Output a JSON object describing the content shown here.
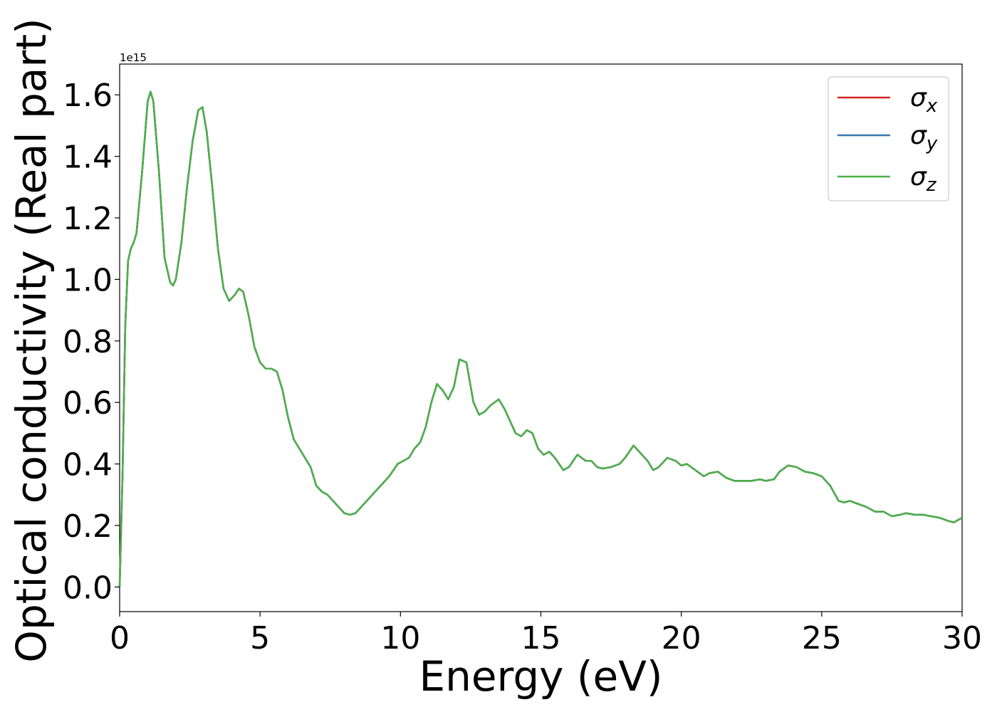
{
  "chart_data": {
    "type": "line",
    "title": "",
    "xlabel": "Energy (eV)",
    "ylabel": "Optical conductivity (Real part)",
    "y_offset_text": "1e15",
    "xlim": [
      0,
      30
    ],
    "ylim": [
      -0.08,
      1.7
    ],
    "y_scale_factor": 1000000000000000.0,
    "xticks": [
      0,
      5,
      10,
      15,
      20,
      25,
      30
    ],
    "xtick_labels": [
      "0",
      "5",
      "10",
      "15",
      "20",
      "25",
      "30"
    ],
    "yticks": [
      0.0,
      0.2,
      0.4,
      0.6,
      0.8,
      1.0,
      1.2,
      1.4,
      1.6
    ],
    "ytick_labels": [
      "0.0",
      "0.2",
      "0.4",
      "0.6",
      "0.8",
      "1.0",
      "1.2",
      "1.4",
      "1.6"
    ],
    "grid": false,
    "legend_position": "top-right",
    "x": [
      0,
      0.1,
      0.2,
      0.3,
      0.4,
      0.5,
      0.6,
      0.8,
      1.0,
      1.1,
      1.2,
      1.4,
      1.6,
      1.8,
      1.9,
      2.0,
      2.2,
      2.4,
      2.6,
      2.8,
      2.95,
      3.1,
      3.3,
      3.5,
      3.7,
      3.9,
      4.1,
      4.25,
      4.4,
      4.6,
      4.8,
      5.0,
      5.2,
      5.4,
      5.6,
      5.8,
      6.0,
      6.2,
      6.4,
      6.6,
      6.8,
      7.0,
      7.2,
      7.4,
      7.6,
      7.8,
      8.0,
      8.2,
      8.4,
      8.55,
      8.7,
      9.0,
      9.3,
      9.6,
      9.9,
      10.1,
      10.3,
      10.5,
      10.7,
      10.9,
      11.1,
      11.3,
      11.5,
      11.7,
      11.9,
      12.1,
      12.35,
      12.6,
      12.8,
      13.0,
      13.2,
      13.5,
      13.7,
      13.9,
      14.1,
      14.3,
      14.5,
      14.7,
      14.9,
      15.1,
      15.3,
      15.5,
      15.8,
      16.0,
      16.3,
      16.6,
      16.8,
      17.0,
      17.2,
      17.5,
      17.8,
      18.0,
      18.3,
      18.6,
      18.8,
      19.0,
      19.2,
      19.5,
      19.8,
      20.0,
      20.2,
      20.5,
      20.8,
      21.0,
      21.3,
      21.6,
      21.9,
      22.2,
      22.5,
      22.8,
      23.0,
      23.3,
      23.5,
      23.8,
      24.1,
      24.4,
      24.7,
      25.0,
      25.3,
      25.6,
      25.8,
      26.0,
      26.3,
      26.6,
      26.9,
      27.2,
      27.5,
      27.8,
      28.0,
      28.3,
      28.6,
      28.9,
      29.2,
      29.5,
      29.7,
      30.0
    ],
    "series": [
      {
        "name": "σx",
        "color": "#d62728",
        "values": [
          0.0,
          0.35,
          0.85,
          1.06,
          1.1,
          1.12,
          1.15,
          1.35,
          1.58,
          1.61,
          1.58,
          1.35,
          1.07,
          0.99,
          0.98,
          1.0,
          1.12,
          1.3,
          1.45,
          1.55,
          1.56,
          1.48,
          1.3,
          1.1,
          0.97,
          0.93,
          0.95,
          0.97,
          0.96,
          0.88,
          0.78,
          0.73,
          0.71,
          0.71,
          0.7,
          0.64,
          0.55,
          0.48,
          0.45,
          0.42,
          0.39,
          0.33,
          0.31,
          0.3,
          0.28,
          0.26,
          0.24,
          0.235,
          0.24,
          0.255,
          0.27,
          0.3,
          0.33,
          0.36,
          0.4,
          0.41,
          0.42,
          0.45,
          0.47,
          0.52,
          0.6,
          0.66,
          0.64,
          0.61,
          0.65,
          0.74,
          0.73,
          0.6,
          0.56,
          0.57,
          0.59,
          0.61,
          0.58,
          0.54,
          0.5,
          0.49,
          0.51,
          0.5,
          0.45,
          0.43,
          0.44,
          0.42,
          0.38,
          0.39,
          0.43,
          0.41,
          0.41,
          0.39,
          0.385,
          0.39,
          0.4,
          0.42,
          0.46,
          0.43,
          0.41,
          0.38,
          0.39,
          0.42,
          0.41,
          0.395,
          0.4,
          0.38,
          0.36,
          0.37,
          0.375,
          0.355,
          0.345,
          0.345,
          0.345,
          0.35,
          0.345,
          0.35,
          0.375,
          0.395,
          0.39,
          0.375,
          0.37,
          0.36,
          0.33,
          0.28,
          0.275,
          0.28,
          0.27,
          0.26,
          0.245,
          0.245,
          0.23,
          0.235,
          0.24,
          0.235,
          0.235,
          0.23,
          0.225,
          0.215,
          0.21,
          0.225
        ]
      },
      {
        "name": "σy",
        "color": "#3a78b0",
        "values": [
          0.0,
          0.35,
          0.85,
          1.06,
          1.1,
          1.12,
          1.15,
          1.35,
          1.58,
          1.61,
          1.58,
          1.35,
          1.07,
          0.99,
          0.98,
          1.0,
          1.12,
          1.3,
          1.45,
          1.55,
          1.56,
          1.48,
          1.3,
          1.1,
          0.97,
          0.93,
          0.95,
          0.97,
          0.96,
          0.88,
          0.78,
          0.73,
          0.71,
          0.71,
          0.7,
          0.64,
          0.55,
          0.48,
          0.45,
          0.42,
          0.39,
          0.33,
          0.31,
          0.3,
          0.28,
          0.26,
          0.24,
          0.235,
          0.24,
          0.255,
          0.27,
          0.3,
          0.33,
          0.36,
          0.4,
          0.41,
          0.42,
          0.45,
          0.47,
          0.52,
          0.6,
          0.66,
          0.64,
          0.61,
          0.65,
          0.74,
          0.73,
          0.6,
          0.56,
          0.57,
          0.59,
          0.61,
          0.58,
          0.54,
          0.5,
          0.49,
          0.51,
          0.5,
          0.45,
          0.43,
          0.44,
          0.42,
          0.38,
          0.39,
          0.43,
          0.41,
          0.41,
          0.39,
          0.385,
          0.39,
          0.4,
          0.42,
          0.46,
          0.43,
          0.41,
          0.38,
          0.39,
          0.42,
          0.41,
          0.395,
          0.4,
          0.38,
          0.36,
          0.37,
          0.375,
          0.355,
          0.345,
          0.345,
          0.345,
          0.35,
          0.345,
          0.35,
          0.375,
          0.395,
          0.39,
          0.375,
          0.37,
          0.36,
          0.33,
          0.28,
          0.275,
          0.28,
          0.27,
          0.26,
          0.245,
          0.245,
          0.23,
          0.235,
          0.24,
          0.235,
          0.235,
          0.23,
          0.225,
          0.215,
          0.21,
          0.225
        ]
      },
      {
        "name": "σz",
        "color": "#4daf4a",
        "values": [
          0.0,
          0.35,
          0.85,
          1.06,
          1.1,
          1.12,
          1.15,
          1.35,
          1.58,
          1.61,
          1.58,
          1.35,
          1.07,
          0.99,
          0.98,
          1.0,
          1.12,
          1.3,
          1.45,
          1.55,
          1.56,
          1.48,
          1.3,
          1.1,
          0.97,
          0.93,
          0.95,
          0.97,
          0.96,
          0.88,
          0.78,
          0.73,
          0.71,
          0.71,
          0.7,
          0.64,
          0.55,
          0.48,
          0.45,
          0.42,
          0.39,
          0.33,
          0.31,
          0.3,
          0.28,
          0.26,
          0.24,
          0.235,
          0.24,
          0.255,
          0.27,
          0.3,
          0.33,
          0.36,
          0.4,
          0.41,
          0.42,
          0.45,
          0.47,
          0.52,
          0.6,
          0.66,
          0.64,
          0.61,
          0.65,
          0.74,
          0.73,
          0.6,
          0.56,
          0.57,
          0.59,
          0.61,
          0.58,
          0.54,
          0.5,
          0.49,
          0.51,
          0.5,
          0.45,
          0.43,
          0.44,
          0.42,
          0.38,
          0.39,
          0.43,
          0.41,
          0.41,
          0.39,
          0.385,
          0.39,
          0.4,
          0.42,
          0.46,
          0.43,
          0.41,
          0.38,
          0.39,
          0.42,
          0.41,
          0.395,
          0.4,
          0.38,
          0.36,
          0.37,
          0.375,
          0.355,
          0.345,
          0.345,
          0.345,
          0.35,
          0.345,
          0.35,
          0.375,
          0.395,
          0.39,
          0.375,
          0.37,
          0.36,
          0.33,
          0.28,
          0.275,
          0.28,
          0.27,
          0.26,
          0.245,
          0.245,
          0.23,
          0.235,
          0.24,
          0.235,
          0.235,
          0.23,
          0.225,
          0.215,
          0.21,
          0.225
        ]
      }
    ],
    "legend": [
      {
        "symbol": "σ",
        "subscript": "x"
      },
      {
        "symbol": "σ",
        "subscript": "y"
      },
      {
        "symbol": "σ",
        "subscript": "z"
      }
    ]
  }
}
